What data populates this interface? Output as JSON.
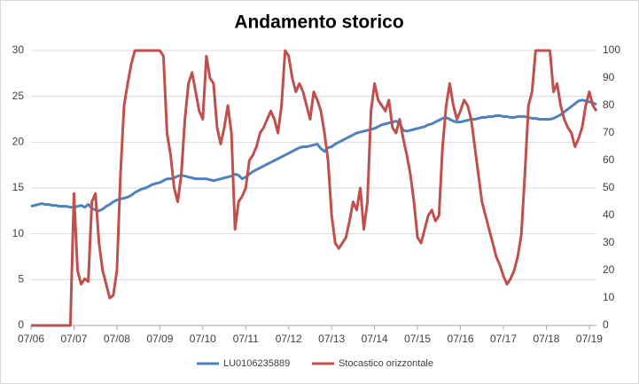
{
  "chart_data": {
    "type": "line",
    "title": "Andamento storico",
    "x": [
      "2006-07",
      "2006-08",
      "2006-09",
      "2006-10",
      "2006-11",
      "2006-12",
      "2007-01",
      "2007-02",
      "2007-03",
      "2007-04",
      "2007-05",
      "2007-06",
      "2007-07",
      "2007-08",
      "2007-09",
      "2007-10",
      "2007-11",
      "2007-12",
      "2008-01",
      "2008-02",
      "2008-03",
      "2008-04",
      "2008-05",
      "2008-06",
      "2008-07",
      "2008-08",
      "2008-09",
      "2008-10",
      "2008-11",
      "2008-12",
      "2009-01",
      "2009-02",
      "2009-03",
      "2009-04",
      "2009-05",
      "2009-06",
      "2009-07",
      "2009-08",
      "2009-09",
      "2009-10",
      "2009-11",
      "2009-12",
      "2010-01",
      "2010-02",
      "2010-03",
      "2010-04",
      "2010-05",
      "2010-06",
      "2010-07",
      "2010-08",
      "2010-09",
      "2010-10",
      "2010-11",
      "2010-12",
      "2011-01",
      "2011-02",
      "2011-03",
      "2011-04",
      "2011-05",
      "2011-06",
      "2011-07",
      "2011-08",
      "2011-09",
      "2011-10",
      "2011-11",
      "2011-12",
      "2012-01",
      "2012-02",
      "2012-03",
      "2012-04",
      "2012-05",
      "2012-06",
      "2012-07",
      "2012-08",
      "2012-09",
      "2012-10",
      "2012-11",
      "2012-12",
      "2013-01",
      "2013-02",
      "2013-03",
      "2013-04",
      "2013-05",
      "2013-06",
      "2013-07",
      "2013-08",
      "2013-09",
      "2013-10",
      "2013-11",
      "2013-12",
      "2014-01",
      "2014-02",
      "2014-03",
      "2014-04",
      "2014-05",
      "2014-06",
      "2014-07",
      "2014-08",
      "2014-09",
      "2014-10",
      "2014-11",
      "2014-12",
      "2015-01",
      "2015-02",
      "2015-03",
      "2015-04",
      "2015-05",
      "2015-06",
      "2015-07",
      "2015-08",
      "2015-09",
      "2015-10",
      "2015-11",
      "2015-12",
      "2016-01",
      "2016-02",
      "2016-03",
      "2016-04",
      "2016-05",
      "2016-06",
      "2016-07",
      "2016-08",
      "2016-09",
      "2016-10",
      "2016-11",
      "2016-12",
      "2017-01",
      "2017-02",
      "2017-03",
      "2017-04",
      "2017-05",
      "2017-06",
      "2017-07",
      "2017-08",
      "2017-09",
      "2017-10",
      "2017-11",
      "2017-12",
      "2018-01",
      "2018-02",
      "2018-03",
      "2018-04",
      "2018-05",
      "2018-06",
      "2018-07",
      "2018-08",
      "2018-09",
      "2018-10",
      "2018-11",
      "2018-12",
      "2019-01",
      "2019-02",
      "2019-03",
      "2019-04",
      "2019-05",
      "2019-06",
      "2019-07",
      "2019-08",
      "2019-09"
    ],
    "series": [
      {
        "name": "LU0106235889",
        "color": "#4f81bd",
        "values": [
          13.0,
          13.1,
          13.2,
          13.3,
          13.2,
          13.2,
          13.1,
          13.1,
          13.0,
          13.0,
          13.0,
          12.9,
          12.9,
          13.0,
          13.1,
          12.9,
          13.2,
          12.8,
          12.6,
          12.5,
          12.7,
          13.0,
          13.2,
          13.5,
          13.7,
          13.8,
          13.9,
          14.0,
          14.2,
          14.5,
          14.7,
          14.9,
          15.0,
          15.2,
          15.4,
          15.5,
          15.6,
          15.8,
          16.0,
          16.0,
          16.1,
          16.3,
          16.4,
          16.3,
          16.2,
          16.1,
          16.0,
          16.0,
          16.0,
          16.0,
          15.9,
          15.8,
          15.9,
          16.0,
          16.1,
          16.2,
          16.3,
          16.5,
          16.4,
          16.0,
          16.2,
          16.5,
          16.8,
          17.0,
          17.2,
          17.4,
          17.6,
          17.8,
          18.0,
          18.2,
          18.4,
          18.6,
          18.8,
          19.0,
          19.2,
          19.4,
          19.5,
          19.5,
          19.6,
          19.7,
          19.8,
          19.3,
          19.0,
          19.4,
          19.5,
          19.8,
          20.0,
          20.2,
          20.4,
          20.6,
          20.8,
          21.0,
          21.1,
          21.2,
          21.3,
          21.4,
          21.5,
          21.7,
          21.9,
          22.0,
          22.1,
          22.2,
          22.3,
          22.1,
          21.3,
          21.2,
          21.3,
          21.4,
          21.5,
          21.6,
          21.7,
          21.9,
          22.0,
          22.2,
          22.4,
          22.6,
          22.7,
          22.5,
          22.3,
          22.2,
          22.2,
          22.3,
          22.4,
          22.5,
          22.5,
          22.6,
          22.7,
          22.7,
          22.8,
          22.8,
          22.9,
          22.9,
          22.8,
          22.8,
          22.7,
          22.7,
          22.8,
          22.8,
          22.8,
          22.7,
          22.6,
          22.6,
          22.5,
          22.5,
          22.5,
          22.5,
          22.6,
          22.8,
          23.0,
          23.3,
          23.6,
          23.9,
          24.2,
          24.5,
          24.6,
          24.5,
          24.4,
          24.3,
          24.1
        ]
      },
      {
        "name": "Stocastico orizzontale",
        "color": "#c0504d",
        "axis": "y2",
        "values": [
          0,
          0,
          0,
          0,
          0,
          0,
          0,
          0,
          0,
          0,
          0,
          0,
          48,
          20,
          15,
          17,
          16,
          45,
          48,
          30,
          20,
          15,
          10,
          11,
          20,
          55,
          80,
          88,
          95,
          100,
          100,
          100,
          100,
          100,
          100,
          100,
          100,
          98,
          70,
          62,
          50,
          45,
          55,
          75,
          88,
          92,
          85,
          78,
          75,
          98,
          90,
          88,
          72,
          66,
          72,
          80,
          70,
          35,
          45,
          47,
          50,
          60,
          62,
          65,
          70,
          72,
          75,
          78,
          75,
          70,
          80,
          100,
          98,
          90,
          85,
          88,
          85,
          80,
          75,
          85,
          82,
          78,
          70,
          60,
          40,
          30,
          28,
          30,
          32,
          38,
          45,
          42,
          50,
          35,
          45,
          78,
          88,
          82,
          80,
          78,
          82,
          72,
          70,
          75,
          68,
          62,
          55,
          45,
          32,
          30,
          35,
          40,
          42,
          38,
          40,
          65,
          80,
          88,
          80,
          75,
          78,
          82,
          80,
          75,
          65,
          55,
          45,
          40,
          35,
          30,
          25,
          22,
          18,
          15,
          17,
          20,
          25,
          33,
          55,
          80,
          85,
          100,
          100,
          100,
          100,
          100,
          85,
          88,
          80,
          75,
          72,
          70,
          65,
          68,
          72,
          80,
          85,
          80,
          78
        ]
      }
    ],
    "xlim": [
      "2006-07",
      "2019-09"
    ],
    "xticks": [
      {
        "value": "2006-07",
        "label": "07/06"
      },
      {
        "value": "2007-07",
        "label": "07/07"
      },
      {
        "value": "2008-07",
        "label": "07/08"
      },
      {
        "value": "2009-07",
        "label": "07/09"
      },
      {
        "value": "2010-07",
        "label": "07/10"
      },
      {
        "value": "2011-07",
        "label": "07/11"
      },
      {
        "value": "2012-07",
        "label": "07/12"
      },
      {
        "value": "2013-07",
        "label": "07/13"
      },
      {
        "value": "2014-07",
        "label": "07/14"
      },
      {
        "value": "2015-07",
        "label": "07/15"
      },
      {
        "value": "2016-07",
        "label": "07/16"
      },
      {
        "value": "2017-07",
        "label": "07/17"
      },
      {
        "value": "2018-07",
        "label": "07/18"
      },
      {
        "value": "2019-07",
        "label": "07/19"
      }
    ],
    "ylim": [
      0,
      30
    ],
    "yticks": [
      0,
      5,
      10,
      15,
      20,
      25,
      30
    ],
    "y2lim": [
      0,
      100
    ],
    "y2ticks": [
      0,
      10,
      20,
      30,
      40,
      50,
      60,
      70,
      80,
      90,
      100
    ],
    "grid": true,
    "legend": "bottom"
  }
}
